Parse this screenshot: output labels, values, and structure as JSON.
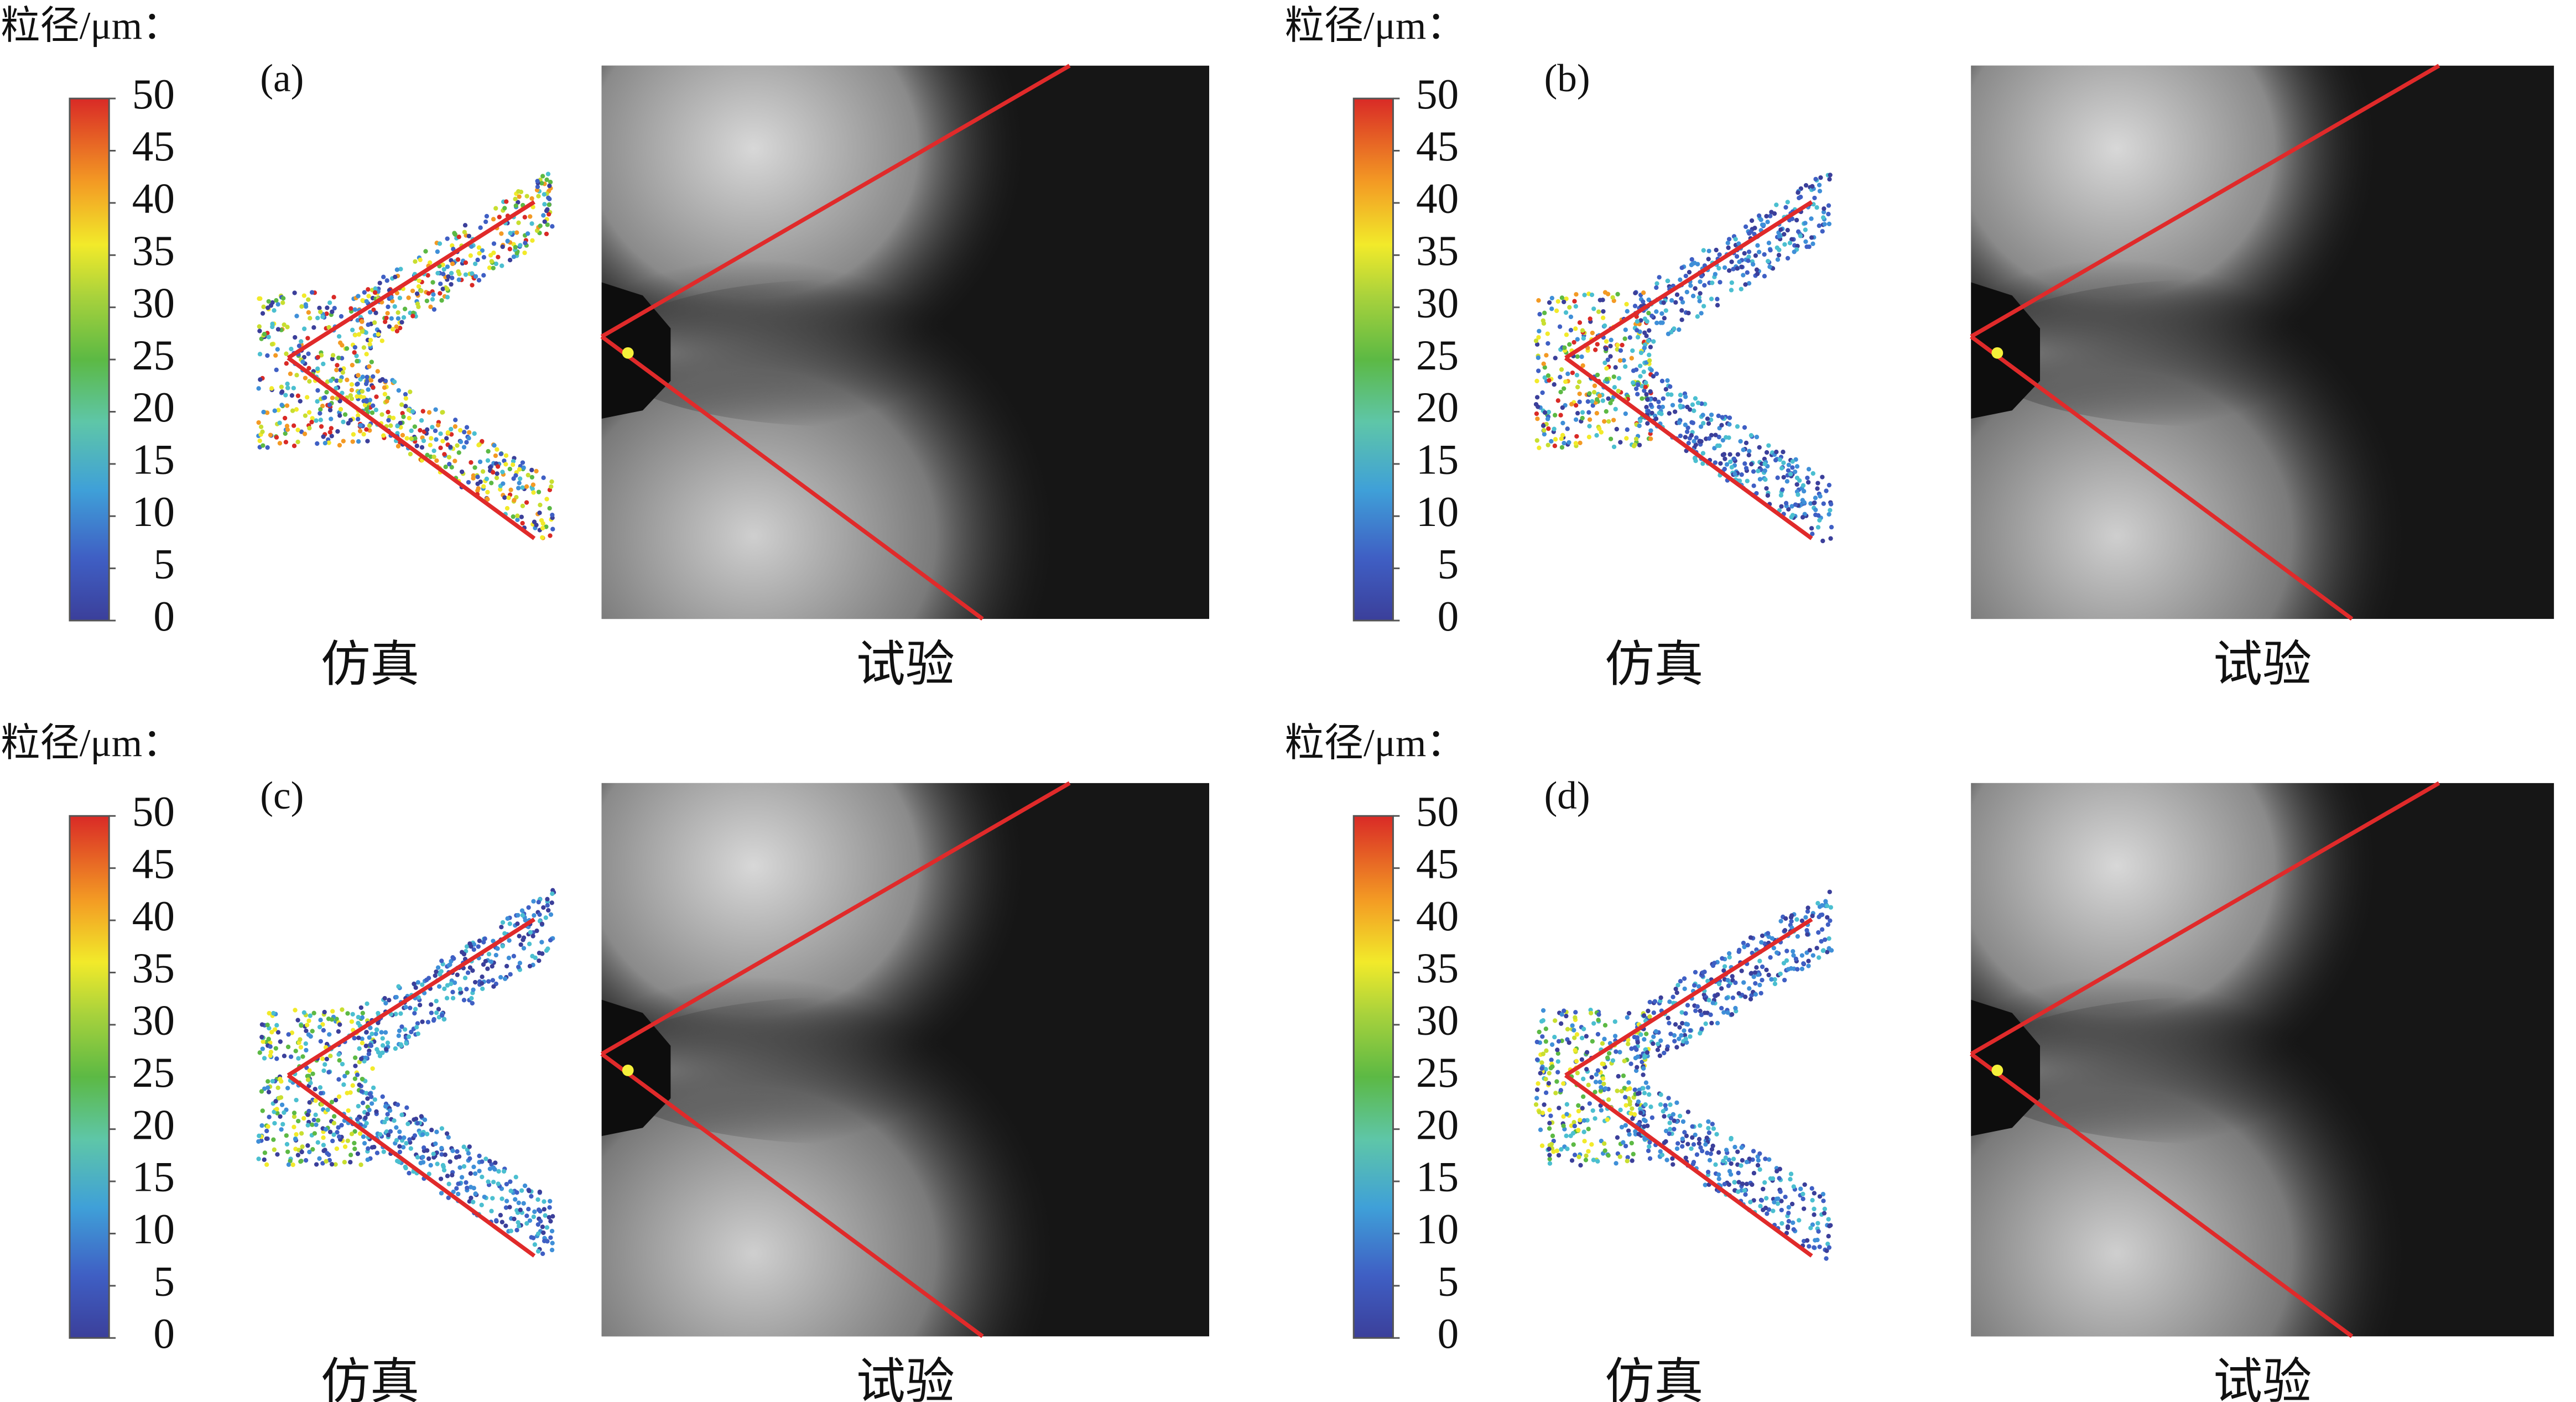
{
  "panels": [
    {
      "unit_label": "粒径/μm：",
      "label": "(a)",
      "colorbar_ticks": [
        0,
        5,
        10,
        15,
        20,
        25,
        30,
        35,
        40,
        45,
        50
      ],
      "simulation_label": "仿真",
      "experiment_label": "试验"
    },
    {
      "unit_label": "粒径/μm：",
      "label": "(b)",
      "colorbar_ticks": [
        0,
        5,
        10,
        15,
        20,
        25,
        30,
        35,
        40,
        45,
        50
      ],
      "simulation_label": "仿真",
      "experiment_label": "试验"
    },
    {
      "unit_label": "粒径/μm：",
      "label": "(c)",
      "colorbar_ticks": [
        0,
        5,
        10,
        15,
        20,
        25,
        30,
        35,
        40,
        45,
        50
      ],
      "simulation_label": "仿真",
      "experiment_label": "试验"
    },
    {
      "unit_label": "粒径/μm：",
      "label": "(d)",
      "colorbar_ticks": [
        0,
        5,
        10,
        15,
        20,
        25,
        30,
        35,
        40,
        45,
        50
      ],
      "simulation_label": "仿真",
      "experiment_label": "试验"
    }
  ]
}
